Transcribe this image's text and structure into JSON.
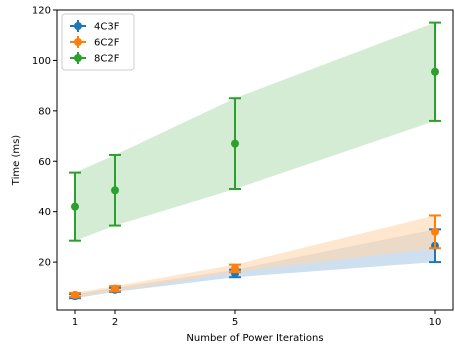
{
  "chart_data": {
    "type": "line",
    "xlabel": "Number of Power Iterations",
    "ylabel": "Time (ms)",
    "x": [
      1,
      2,
      5,
      10
    ],
    "x_ticks": [
      1,
      2,
      5,
      10
    ],
    "y_ticks": [
      20,
      40,
      60,
      80,
      100,
      120
    ],
    "xlim": [
      0.55,
      10.45
    ],
    "ylim": [
      1,
      120
    ],
    "grid": false,
    "legend_position": "top-left",
    "series": [
      {
        "name": "4C3F",
        "color": "#1f77b4",
        "fill_color": "#aecbe4",
        "values": [
          6.5,
          9.0,
          15.5,
          26.5
        ],
        "error": [
          0.8,
          0.8,
          1.5,
          6.5
        ]
      },
      {
        "name": "6C2F",
        "color": "#ff7f0e",
        "fill_color": "#ffd5ae",
        "values": [
          7.0,
          9.5,
          17.5,
          32.0
        ],
        "error": [
          0.8,
          1.0,
          1.5,
          6.5
        ]
      },
      {
        "name": "8C2F",
        "color": "#2ca02c",
        "fill_color": "#b8e0b8",
        "values": [
          42.0,
          48.5,
          67.0,
          95.5
        ],
        "error": [
          13.5,
          14.0,
          18.0,
          19.5
        ]
      }
    ]
  }
}
